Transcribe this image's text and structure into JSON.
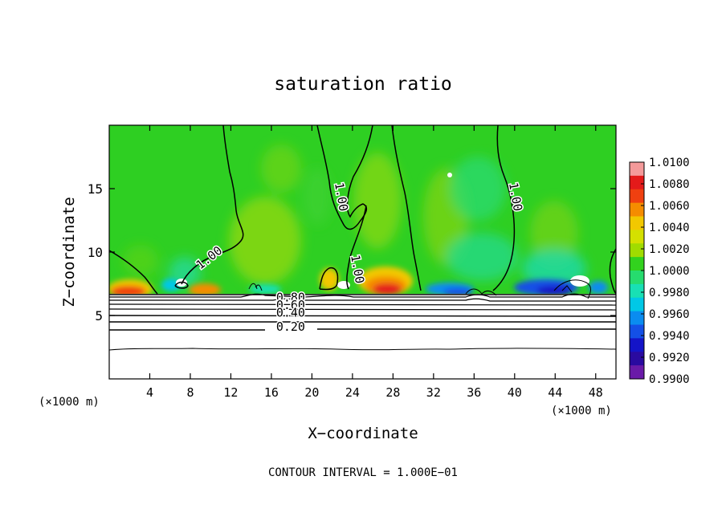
{
  "chart_data": {
    "type": "heatmap",
    "title": "saturation ratio",
    "xlabel": "X−coordinate",
    "ylabel": "Z−coordinate",
    "x_unit_left": "(×1000 m)",
    "x_unit_right": "(×1000 m)",
    "footer": "CONTOUR INTERVAL = 1.000E−01",
    "xlim": [
      0,
      50
    ],
    "ylim": [
      0,
      20
    ],
    "x_ticks": [
      4,
      8,
      12,
      16,
      20,
      24,
      28,
      32,
      36,
      40,
      44,
      48
    ],
    "y_ticks": [
      5,
      10,
      15
    ],
    "colorbar": {
      "min": 0.99,
      "max": 1.01,
      "labels": [
        "1.0100",
        "1.0080",
        "1.0060",
        "1.0040",
        "1.0020",
        "1.0000",
        "0.9980",
        "0.9960",
        "0.9940",
        "0.9920",
        "0.9900"
      ],
      "colors": [
        "#f49a9a",
        "#e41a1a",
        "#f04010",
        "#f58c00",
        "#f2c800",
        "#d4e000",
        "#a0dc00",
        "#32d21e",
        "#26dc6e",
        "#18e0b4",
        "#00c8e6",
        "#0a8cf0",
        "#1450e6",
        "#1414c8",
        "#2a0aa0",
        "#6a1aa8"
      ]
    },
    "contour_labels": [
      {
        "text": "1.00",
        "x": 10.1,
        "z": 9.3
      },
      {
        "text": "1.00",
        "x": 22.5,
        "z": 14.3
      },
      {
        "text": "1.00",
        "x": 24.1,
        "z": 8.6
      },
      {
        "text": "1.00",
        "x": 39.7,
        "z": 14.3
      },
      {
        "text": "0.80",
        "x": 17.9,
        "z": 6.1
      },
      {
        "text": "0.60",
        "x": 17.9,
        "z": 5.5
      },
      {
        "text": "0.40",
        "x": 17.9,
        "z": 4.9
      },
      {
        "text": "0.20",
        "x": 17.9,
        "z": 3.8
      }
    ]
  }
}
